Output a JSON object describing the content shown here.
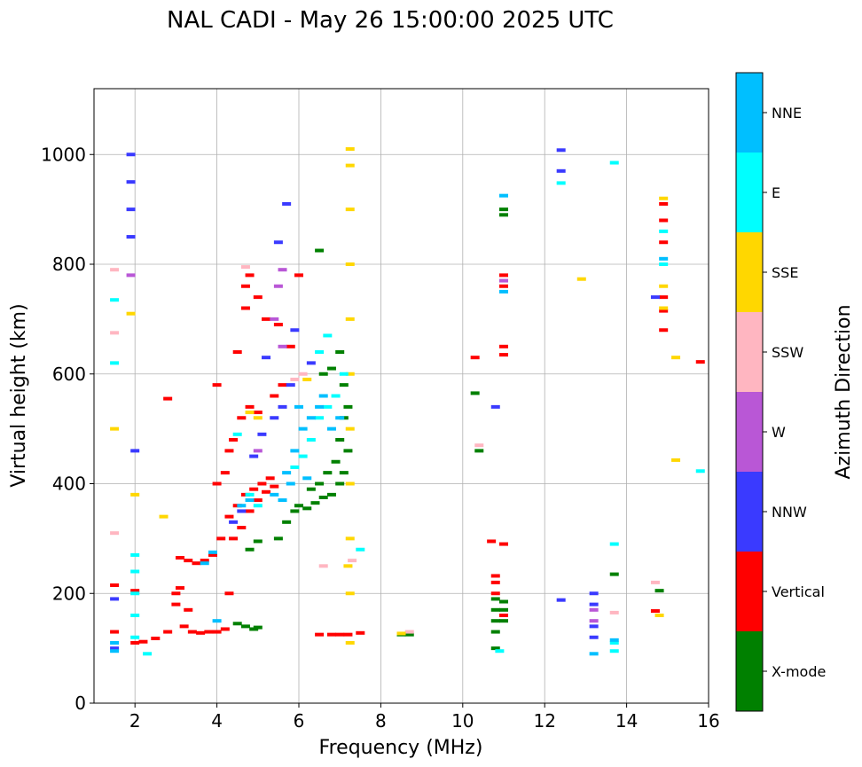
{
  "chart_data": {
    "type": "scatter",
    "title": "NAL CADI - May 26 15:00:00 2025 UTC",
    "xlabel": "Frequency (MHz)",
    "ylabel": "Virtual height (km)",
    "xlim": [
      1,
      16
    ],
    "ylim": [
      0,
      1120
    ],
    "xticks": [
      "2",
      "4",
      "6",
      "8",
      "10",
      "12",
      "14",
      "16"
    ],
    "yticks": [
      "0",
      "200",
      "400",
      "600",
      "800",
      "1000"
    ],
    "grid": true,
    "colorbar": {
      "label": "Azimuth Direction",
      "categories": [
        {
          "name": "X-mode",
          "color": "#008000"
        },
        {
          "name": "Vertical",
          "color": "#ff0000"
        },
        {
          "name": "NNW",
          "color": "#3a3aff"
        },
        {
          "name": "W",
          "color": "#b957d6"
        },
        {
          "name": "SSW",
          "color": "#ffb6c1"
        },
        {
          "name": "SSE",
          "color": "#ffd700"
        },
        {
          "name": "E",
          "color": "#00ffff"
        },
        {
          "name": "NNE",
          "color": "#00bfff"
        }
      ]
    },
    "series": [
      {
        "name": "X-mode",
        "points": [
          [
            6.0,
            360
          ],
          [
            6.2,
            355
          ],
          [
            6.4,
            365
          ],
          [
            6.6,
            375
          ],
          [
            6.8,
            380
          ],
          [
            7.0,
            400
          ],
          [
            7.1,
            420
          ],
          [
            7.2,
            460
          ],
          [
            6.3,
            390
          ],
          [
            6.5,
            400
          ],
          [
            6.7,
            420
          ],
          [
            6.9,
            440
          ],
          [
            7.0,
            480
          ],
          [
            7.1,
            520
          ],
          [
            7.2,
            540
          ],
          [
            6.6,
            600
          ],
          [
            6.8,
            610
          ],
          [
            7.0,
            640
          ],
          [
            7.1,
            580
          ],
          [
            6.5,
            825
          ],
          [
            5.5,
            300
          ],
          [
            5.7,
            330
          ],
          [
            5.9,
            350
          ],
          [
            4.8,
            280
          ],
          [
            5.0,
            295
          ],
          [
            4.7,
            140
          ],
          [
            4.9,
            135
          ],
          [
            5.0,
            138
          ],
          [
            4.5,
            145
          ],
          [
            10.8,
            100
          ],
          [
            10.8,
            130
          ],
          [
            10.8,
            150
          ],
          [
            10.8,
            170
          ],
          [
            10.8,
            190
          ],
          [
            11.0,
            150
          ],
          [
            11.0,
            170
          ],
          [
            11.0,
            185
          ],
          [
            11.0,
            890
          ],
          [
            11.0,
            900
          ],
          [
            8.5,
            125
          ],
          [
            8.7,
            125
          ],
          [
            10.3,
            565
          ],
          [
            10.4,
            460
          ],
          [
            13.7,
            235
          ],
          [
            14.8,
            205
          ]
        ]
      },
      {
        "name": "Vertical",
        "points": [
          [
            3.0,
            200
          ],
          [
            3.2,
            140
          ],
          [
            3.4,
            130
          ],
          [
            3.6,
            128
          ],
          [
            3.8,
            130
          ],
          [
            4.0,
            130
          ],
          [
            4.2,
            135
          ],
          [
            3.1,
            210
          ],
          [
            3.3,
            170
          ],
          [
            3.0,
            180
          ],
          [
            2.8,
            130
          ],
          [
            2.5,
            118
          ],
          [
            2.2,
            112
          ],
          [
            2.0,
            110
          ],
          [
            4.1,
            300
          ],
          [
            4.3,
            340
          ],
          [
            4.5,
            360
          ],
          [
            4.7,
            380
          ],
          [
            4.9,
            390
          ],
          [
            5.1,
            400
          ],
          [
            5.3,
            410
          ],
          [
            4.4,
            300
          ],
          [
            4.6,
            320
          ],
          [
            4.8,
            350
          ],
          [
            5.0,
            370
          ],
          [
            5.2,
            385
          ],
          [
            5.4,
            395
          ],
          [
            3.9,
            270
          ],
          [
            3.7,
            260
          ],
          [
            3.5,
            255
          ],
          [
            3.3,
            260
          ],
          [
            3.1,
            265
          ],
          [
            4.0,
            400
          ],
          [
            4.2,
            420
          ],
          [
            4.3,
            460
          ],
          [
            4.4,
            480
          ],
          [
            4.6,
            520
          ],
          [
            4.8,
            540
          ],
          [
            5.0,
            530
          ],
          [
            5.4,
            560
          ],
          [
            5.6,
            580
          ],
          [
            4.0,
            580
          ],
          [
            4.5,
            640
          ],
          [
            4.7,
            720
          ],
          [
            4.7,
            760
          ],
          [
            4.8,
            780
          ],
          [
            5.0,
            740
          ],
          [
            5.2,
            700
          ],
          [
            5.5,
            690
          ],
          [
            5.8,
            650
          ],
          [
            6.0,
            780
          ],
          [
            6.5,
            125
          ],
          [
            6.8,
            125
          ],
          [
            7.0,
            125
          ],
          [
            7.2,
            125
          ],
          [
            7.5,
            128
          ],
          [
            10.8,
            200
          ],
          [
            10.8,
            220
          ],
          [
            10.8,
            232
          ],
          [
            11.0,
            160
          ],
          [
            11.0,
            290
          ],
          [
            10.7,
            295
          ],
          [
            11.0,
            760
          ],
          [
            11.0,
            780
          ],
          [
            11.0,
            650
          ],
          [
            11.0,
            635
          ],
          [
            10.3,
            630
          ],
          [
            14.9,
            680
          ],
          [
            14.9,
            715
          ],
          [
            14.9,
            740
          ],
          [
            14.9,
            840
          ],
          [
            14.9,
            880
          ],
          [
            14.9,
            910
          ],
          [
            15.8,
            622
          ],
          [
            14.7,
            168
          ],
          [
            2.0,
            205
          ],
          [
            1.5,
            215
          ],
          [
            1.5,
            130
          ],
          [
            2.8,
            555
          ],
          [
            4.3,
            200
          ]
        ]
      },
      {
        "name": "NNW",
        "points": [
          [
            1.5,
            100
          ],
          [
            1.5,
            190
          ],
          [
            1.9,
            1000
          ],
          [
            1.9,
            900
          ],
          [
            1.9,
            850
          ],
          [
            1.9,
            950
          ],
          [
            2.0,
            460
          ],
          [
            5.4,
            520
          ],
          [
            5.6,
            540
          ],
          [
            5.8,
            580
          ],
          [
            5.1,
            490
          ],
          [
            4.9,
            450
          ],
          [
            5.5,
            840
          ],
          [
            5.7,
            910
          ],
          [
            5.9,
            680
          ],
          [
            6.3,
            620
          ],
          [
            13.2,
            120
          ],
          [
            13.2,
            140
          ],
          [
            13.2,
            180
          ],
          [
            13.2,
            200
          ],
          [
            12.4,
            1008
          ],
          [
            12.4,
            970
          ],
          [
            12.4,
            188
          ],
          [
            14.7,
            740
          ],
          [
            10.8,
            540
          ],
          [
            5.2,
            630
          ],
          [
            4.6,
            350
          ],
          [
            4.4,
            330
          ]
        ]
      },
      {
        "name": "W",
        "points": [
          [
            5.5,
            760
          ],
          [
            5.6,
            790
          ],
          [
            5.4,
            700
          ],
          [
            5.6,
            650
          ],
          [
            5.0,
            460
          ],
          [
            13.2,
            150
          ],
          [
            13.2,
            170
          ],
          [
            11.0,
            770
          ],
          [
            1.9,
            780
          ]
        ]
      },
      {
        "name": "SSW",
        "points": [
          [
            1.5,
            790
          ],
          [
            1.5,
            675
          ],
          [
            1.5,
            310
          ],
          [
            5.9,
            590
          ],
          [
            6.1,
            600
          ],
          [
            6.6,
            250
          ],
          [
            7.3,
            260
          ],
          [
            10.4,
            470
          ],
          [
            13.7,
            165
          ],
          [
            14.7,
            220
          ],
          [
            4.7,
            795
          ],
          [
            8.7,
            130
          ]
        ]
      },
      {
        "name": "SSE",
        "points": [
          [
            7.25,
            1010
          ],
          [
            7.25,
            980
          ],
          [
            7.25,
            900
          ],
          [
            7.25,
            800
          ],
          [
            7.25,
            700
          ],
          [
            7.25,
            600
          ],
          [
            7.25,
            500
          ],
          [
            7.25,
            400
          ],
          [
            7.25,
            300
          ],
          [
            7.25,
            200
          ],
          [
            7.25,
            110
          ],
          [
            7.2,
            250
          ],
          [
            1.9,
            710
          ],
          [
            1.5,
            500
          ],
          [
            2.0,
            380
          ],
          [
            2.7,
            340
          ],
          [
            4.8,
            530
          ],
          [
            5.0,
            520
          ],
          [
            8.5,
            127
          ],
          [
            12.9,
            773
          ],
          [
            14.9,
            720
          ],
          [
            14.9,
            760
          ],
          [
            14.9,
            920
          ],
          [
            15.2,
            630
          ],
          [
            15.2,
            443
          ],
          [
            14.8,
            160
          ],
          [
            6.2,
            590
          ]
        ]
      },
      {
        "name": "E",
        "points": [
          [
            2.0,
            120
          ],
          [
            2.0,
            160
          ],
          [
            2.0,
            200
          ],
          [
            2.0,
            240
          ],
          [
            2.0,
            270
          ],
          [
            2.3,
            90
          ],
          [
            1.5,
            620
          ],
          [
            1.5,
            735
          ],
          [
            5.9,
            430
          ],
          [
            6.1,
            450
          ],
          [
            6.3,
            480
          ],
          [
            6.5,
            520
          ],
          [
            6.7,
            540
          ],
          [
            6.9,
            560
          ],
          [
            7.1,
            600
          ],
          [
            6.5,
            640
          ],
          [
            6.7,
            670
          ],
          [
            4.8,
            380
          ],
          [
            5.0,
            360
          ],
          [
            10.9,
            95
          ],
          [
            13.7,
            95
          ],
          [
            13.7,
            290
          ],
          [
            13.7,
            110
          ],
          [
            14.9,
            800
          ],
          [
            14.9,
            860
          ],
          [
            15.8,
            423
          ],
          [
            12.4,
            948
          ],
          [
            13.7,
            985
          ],
          [
            7.5,
            280
          ],
          [
            4.5,
            490
          ]
        ]
      },
      {
        "name": "NNE",
        "points": [
          [
            1.5,
            110
          ],
          [
            1.5,
            95
          ],
          [
            5.7,
            420
          ],
          [
            5.9,
            460
          ],
          [
            6.1,
            500
          ],
          [
            6.3,
            520
          ],
          [
            6.5,
            540
          ],
          [
            6.8,
            500
          ],
          [
            7.0,
            520
          ],
          [
            6.2,
            410
          ],
          [
            5.6,
            370
          ],
          [
            5.4,
            380
          ],
          [
            5.8,
            400
          ],
          [
            4.6,
            360
          ],
          [
            4.8,
            370
          ],
          [
            6.0,
            540
          ],
          [
            6.6,
            560
          ],
          [
            3.7,
            255
          ],
          [
            3.9,
            275
          ],
          [
            13.2,
            90
          ],
          [
            13.7,
            115
          ],
          [
            11.0,
            750
          ],
          [
            11.0,
            925
          ],
          [
            14.9,
            810
          ],
          [
            4.0,
            150
          ]
        ]
      }
    ]
  }
}
